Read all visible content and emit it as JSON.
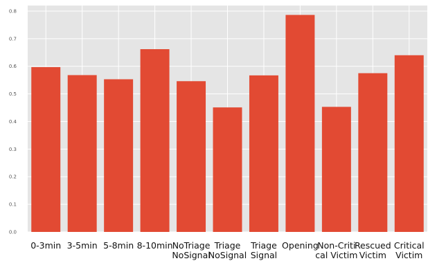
{
  "chart_data": {
    "type": "bar",
    "title": "",
    "xlabel": "",
    "ylabel": "",
    "categories": [
      [
        "0-3min"
      ],
      [
        "3-5min"
      ],
      [
        "5-8min"
      ],
      [
        "8-10min"
      ],
      [
        "NoTriage",
        "NoSignal"
      ],
      [
        "Triage",
        "NoSignal"
      ],
      [
        "Triage",
        "Signal"
      ],
      [
        "Opening"
      ],
      [
        "Non-Criti",
        "cal Victim"
      ],
      [
        "Rescued",
        "Victim"
      ],
      [
        "Critical",
        "Victim"
      ]
    ],
    "values": [
      0.597,
      0.568,
      0.553,
      0.662,
      0.546,
      0.451,
      0.567,
      0.786,
      0.453,
      0.575,
      0.64
    ],
    "ylim": [
      0,
      0.82
    ],
    "yticks": [
      "0.0",
      "0.1",
      "0.2",
      "0.3",
      "0.4",
      "0.5",
      "0.6",
      "0.7",
      "0.8"
    ],
    "grid": true,
    "colors": {
      "bar": "#E24A33",
      "panel": "#E5E5E5",
      "grid": "#FFFFFF"
    }
  }
}
